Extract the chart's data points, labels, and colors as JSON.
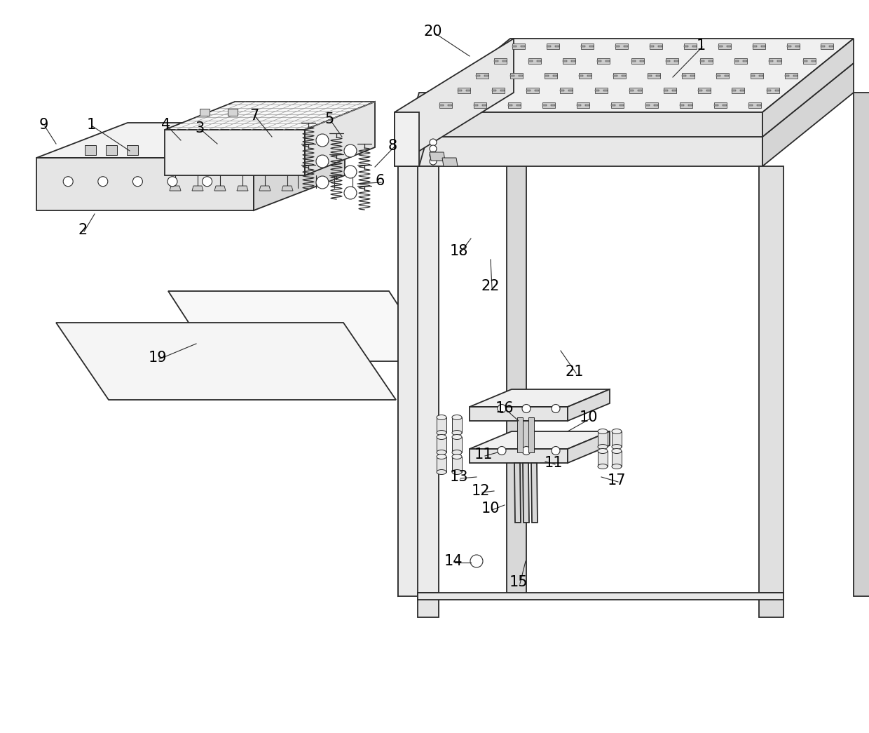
{
  "bg_color": "#ffffff",
  "line_color": "#2a2a2a",
  "label_color": "#000000",
  "label_fontsize": 15,
  "fig_width": 12.4,
  "fig_height": 10.45
}
